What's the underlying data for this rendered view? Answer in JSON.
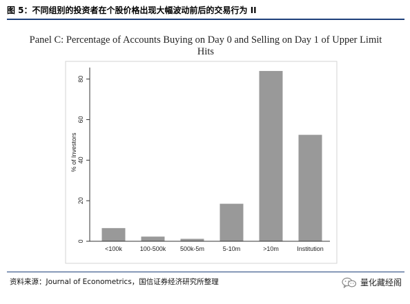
{
  "figure": {
    "caption": "图 5：不同组别的投资者在个股价格出现大幅波动前后的交易行为 II",
    "source": "资料来源：Journal of Econometrics，国信证券经济研究所整理",
    "watermark": "量化藏经阁",
    "watermark_icon": "wechat-icon"
  },
  "chart_data": {
    "type": "bar",
    "title_lines": [
      "Panel C: Percentage of Accounts Buying on Day 0 and Selling on Day 1 of Upper Limit",
      "Hits"
    ],
    "categories": [
      "<100k",
      "100-500k",
      "500k-5m",
      "5-10m",
      ">10m",
      "Institution"
    ],
    "values": [
      6.5,
      2.3,
      1.2,
      18.5,
      84,
      52.5
    ],
    "xlabel": "",
    "ylabel": "% of Investors",
    "ylim": [
      0,
      85
    ],
    "yticks": [
      0,
      20,
      40,
      60,
      80
    ],
    "grid": false,
    "legend": "none",
    "colors": {
      "bar": "#999999",
      "plot_bg": "#ffffff",
      "frame": "#d3d3d3",
      "accent_rule": "#1d3f7a"
    }
  }
}
